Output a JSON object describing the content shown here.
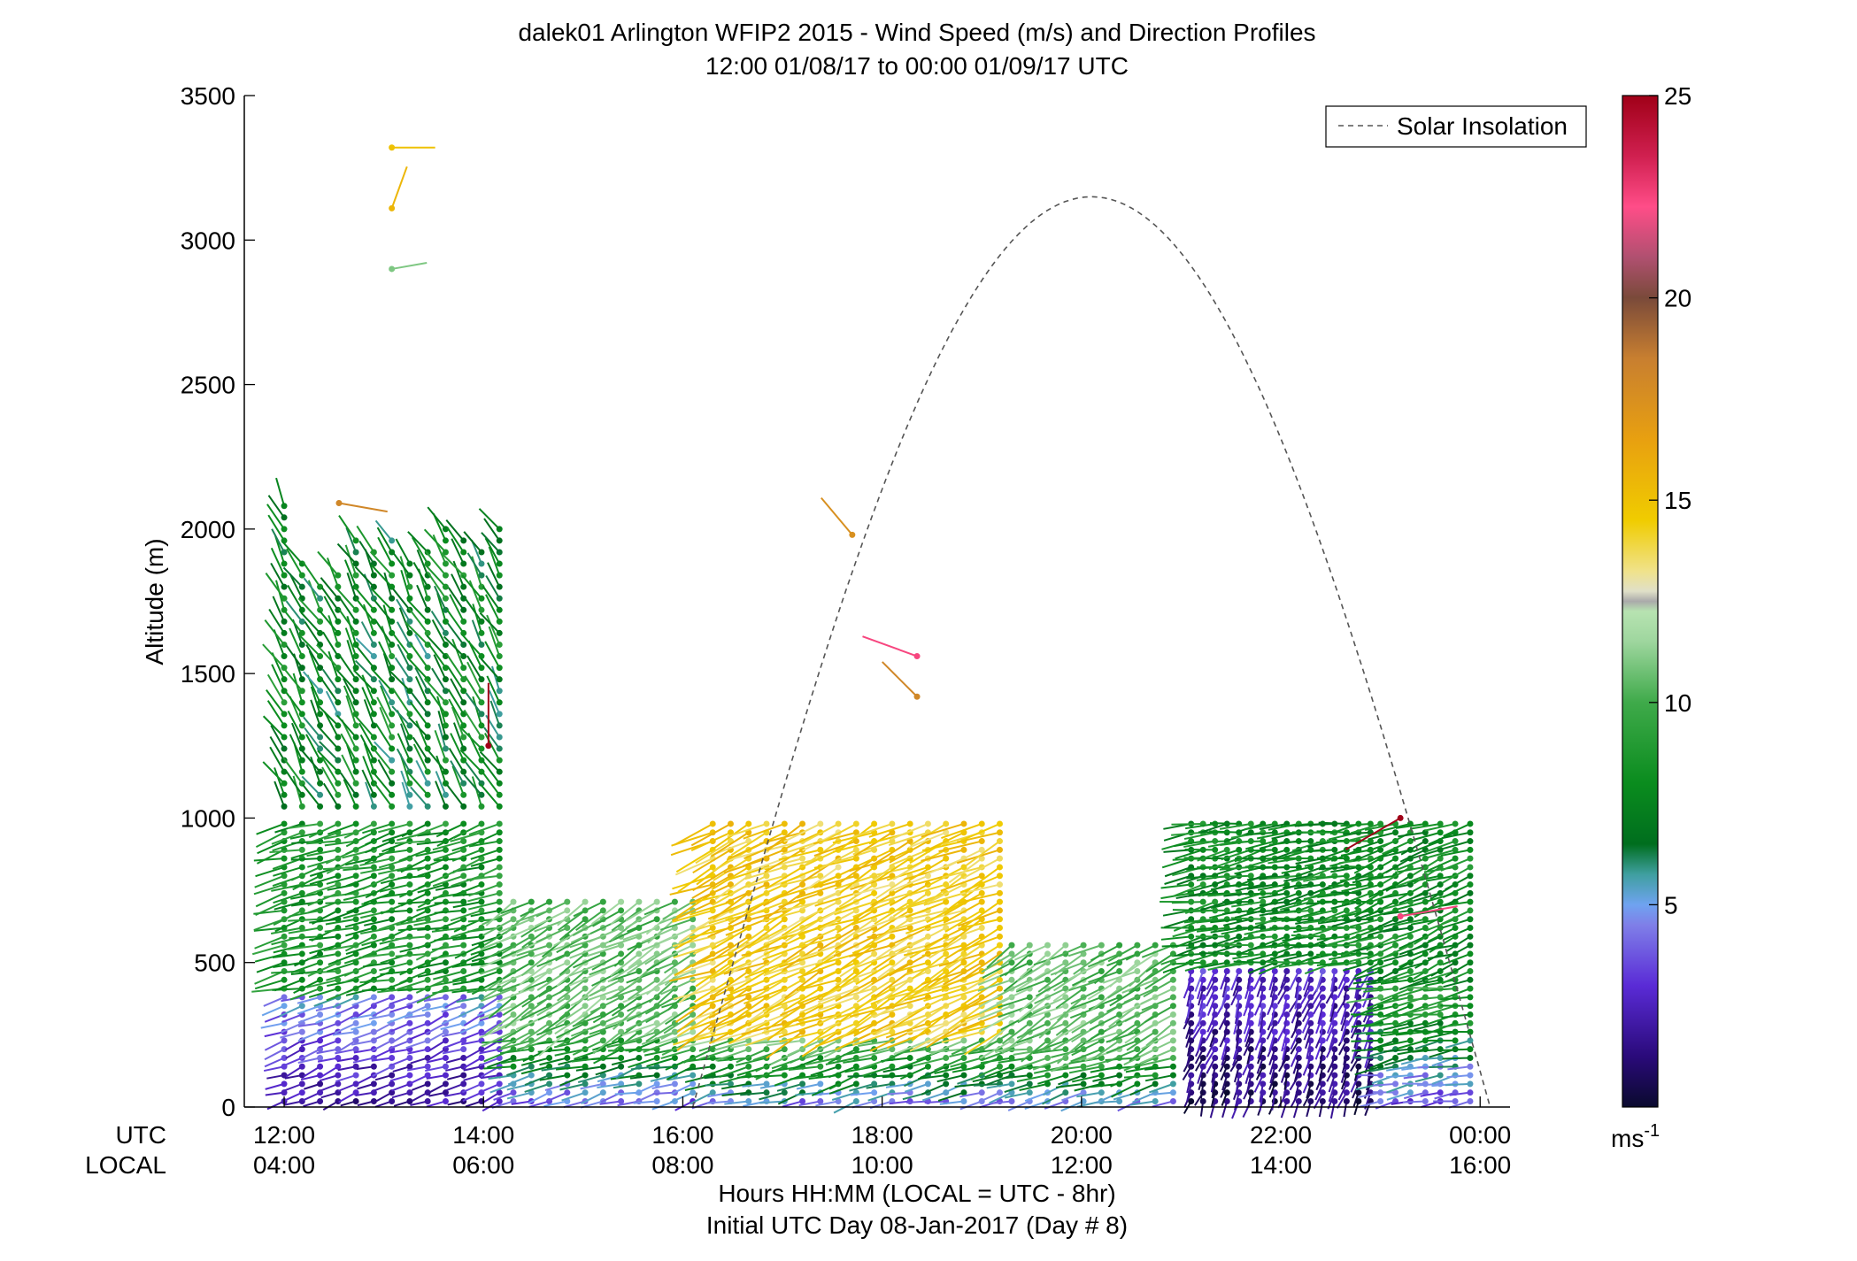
{
  "chart_data": {
    "type": "scatter",
    "title": "dalek01 Arlington WFIP2 2015 - Wind Speed (m/s) and Direction Profiles",
    "subtitle": "12:00 01/08/17 to 00:00 01/09/17  UTC",
    "ylabel": "Altitude (m)",
    "xlabel": "Hours HH:MM  (LOCAL = UTC - 8hr)",
    "xlabel2": "Initial UTC Day 08-Jan-2017 (Day # 8)",
    "row_label_utc": "UTC",
    "row_label_local": "LOCAL",
    "xlim": [
      11.6,
      24.3
    ],
    "ylim": [
      0,
      3500
    ],
    "x_ticks": [
      12,
      14,
      16,
      18,
      20,
      22,
      24
    ],
    "x_tick_labels_utc": [
      "12:00",
      "14:00",
      "16:00",
      "18:00",
      "20:00",
      "22:00",
      "00:00"
    ],
    "x_tick_labels_local": [
      "04:00",
      "06:00",
      "08:00",
      "10:00",
      "12:00",
      "14:00",
      "16:00"
    ],
    "y_ticks": [
      0,
      500,
      1000,
      1500,
      2000,
      2500,
      3000,
      3500
    ],
    "y_tick_labels": [
      "0",
      "500",
      "1000",
      "1500",
      "2000",
      "2500",
      "3000",
      "3500"
    ],
    "legend": {
      "entries": [
        "Solar Insolation"
      ],
      "position": "top-right"
    },
    "colorbar": {
      "min": 0,
      "max": 25,
      "ticks": [
        5,
        10,
        15,
        20,
        25
      ],
      "tick_labels": [
        "5",
        "10",
        "15",
        "20",
        "25"
      ],
      "unit": "ms",
      "unit_sup": "-1"
    },
    "solar_insolation": {
      "start_hour": 16.1,
      "end_hour": 24.1,
      "peak_hour": 20.0,
      "peak_altitude": 3150
    },
    "segments": [
      {
        "x_start": 12.0,
        "x_end": 14.25,
        "dx": 0.18,
        "low_top": 400,
        "mid_top": 1000,
        "high_top": 2200,
        "low_speed": 3.5,
        "mid_speed": 8.5,
        "high_speed": 7.5,
        "dir_low": 250,
        "dir_mid": 255,
        "dir_high": 330
      },
      {
        "x_start": 14.3,
        "x_end": 16.2,
        "dx": 0.18,
        "low_top": 250,
        "mid_top": 720,
        "high_top": 0,
        "low_speed": 7.0,
        "mid_speed": 10.5,
        "high_speed": 0,
        "dir_low": 255,
        "dir_mid": 240,
        "dir_high": 0
      },
      {
        "x_start": 16.3,
        "x_end": 19.2,
        "dx": 0.18,
        "low_top": 250,
        "mid_top": 980,
        "high_top": 0,
        "low_speed": 8.0,
        "mid_speed": 14.5,
        "high_speed": 0,
        "dir_low": 255,
        "dir_mid": 245,
        "dir_high": 0
      },
      {
        "x_start": 19.3,
        "x_end": 21.0,
        "dx": 0.18,
        "low_top": 220,
        "mid_top": 560,
        "high_top": 0,
        "low_speed": 8.0,
        "mid_speed": 10.5,
        "high_speed": 0,
        "dir_low": 255,
        "dir_mid": 240,
        "dir_high": 0
      },
      {
        "x_start": 21.1,
        "x_end": 23.0,
        "dx": 0.12,
        "low_top": 480,
        "mid_top": 1000,
        "high_top": 0,
        "low_speed": 2.0,
        "mid_speed": 8.0,
        "high_speed": 0,
        "dir_low": 200,
        "dir_mid": 260,
        "dir_high": 0
      },
      {
        "x_start": 23.0,
        "x_end": 24.0,
        "dx": 0.15,
        "low_top": 420,
        "mid_top": 1000,
        "high_top": 0,
        "low_speed": 7.0,
        "mid_speed": 8.0,
        "high_speed": 0,
        "dir_low": 260,
        "dir_mid": 250,
        "dir_high": 0
      }
    ],
    "isolated_points": [
      {
        "x": 13.08,
        "alt": 3320,
        "speed": 15.0,
        "dir": 90
      },
      {
        "x": 13.08,
        "alt": 3110,
        "speed": 15.5,
        "dir": 20
      },
      {
        "x": 13.08,
        "alt": 2900,
        "speed": 11.0,
        "dir": 80
      },
      {
        "x": 17.7,
        "alt": 1980,
        "speed": 17.5,
        "dir": 320
      },
      {
        "x": 18.35,
        "alt": 1560,
        "speed": 22.5,
        "dir": 290
      },
      {
        "x": 18.35,
        "alt": 1420,
        "speed": 18.0,
        "dir": 315
      },
      {
        "x": 14.05,
        "alt": 1250,
        "speed": 25.0,
        "dir": 0
      },
      {
        "x": 23.2,
        "alt": 1000,
        "speed": 25.0,
        "dir": 240
      },
      {
        "x": 23.2,
        "alt": 660,
        "speed": 22.5,
        "dir": 80
      },
      {
        "x": 12.55,
        "alt": 2090,
        "speed": 18.0,
        "dir": 100
      }
    ]
  }
}
